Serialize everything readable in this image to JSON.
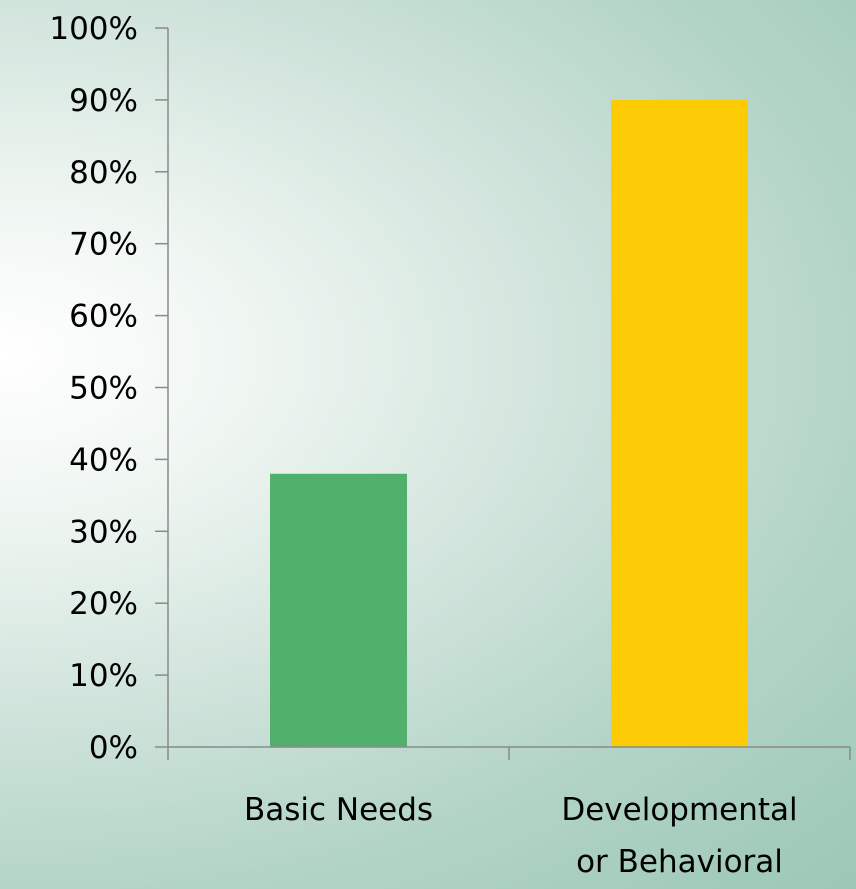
{
  "chart_data": {
    "type": "bar",
    "categories": [
      "Basic Needs",
      "Developmental or Behavioral"
    ],
    "category_label_lines": [
      [
        "Basic Needs"
      ],
      [
        "Developmental",
        "or Behavioral"
      ]
    ],
    "values": [
      38,
      90
    ],
    "value_unit": "%",
    "bar_colors": [
      "#52b06d",
      "#fccb05"
    ],
    "ylim": [
      0,
      100
    ],
    "yticks": [
      0,
      10,
      20,
      30,
      40,
      50,
      60,
      70,
      80,
      90,
      100
    ],
    "ytick_labels": [
      "0%",
      "10%",
      "20%",
      "30%",
      "40%",
      "50%",
      "60%",
      "70%",
      "80%",
      "90%",
      "100%"
    ],
    "title": "",
    "xlabel": "",
    "ylabel": "",
    "grid": false,
    "legend": "none"
  },
  "colors": {
    "axis": "#8a8a8a",
    "text": "#000000"
  }
}
